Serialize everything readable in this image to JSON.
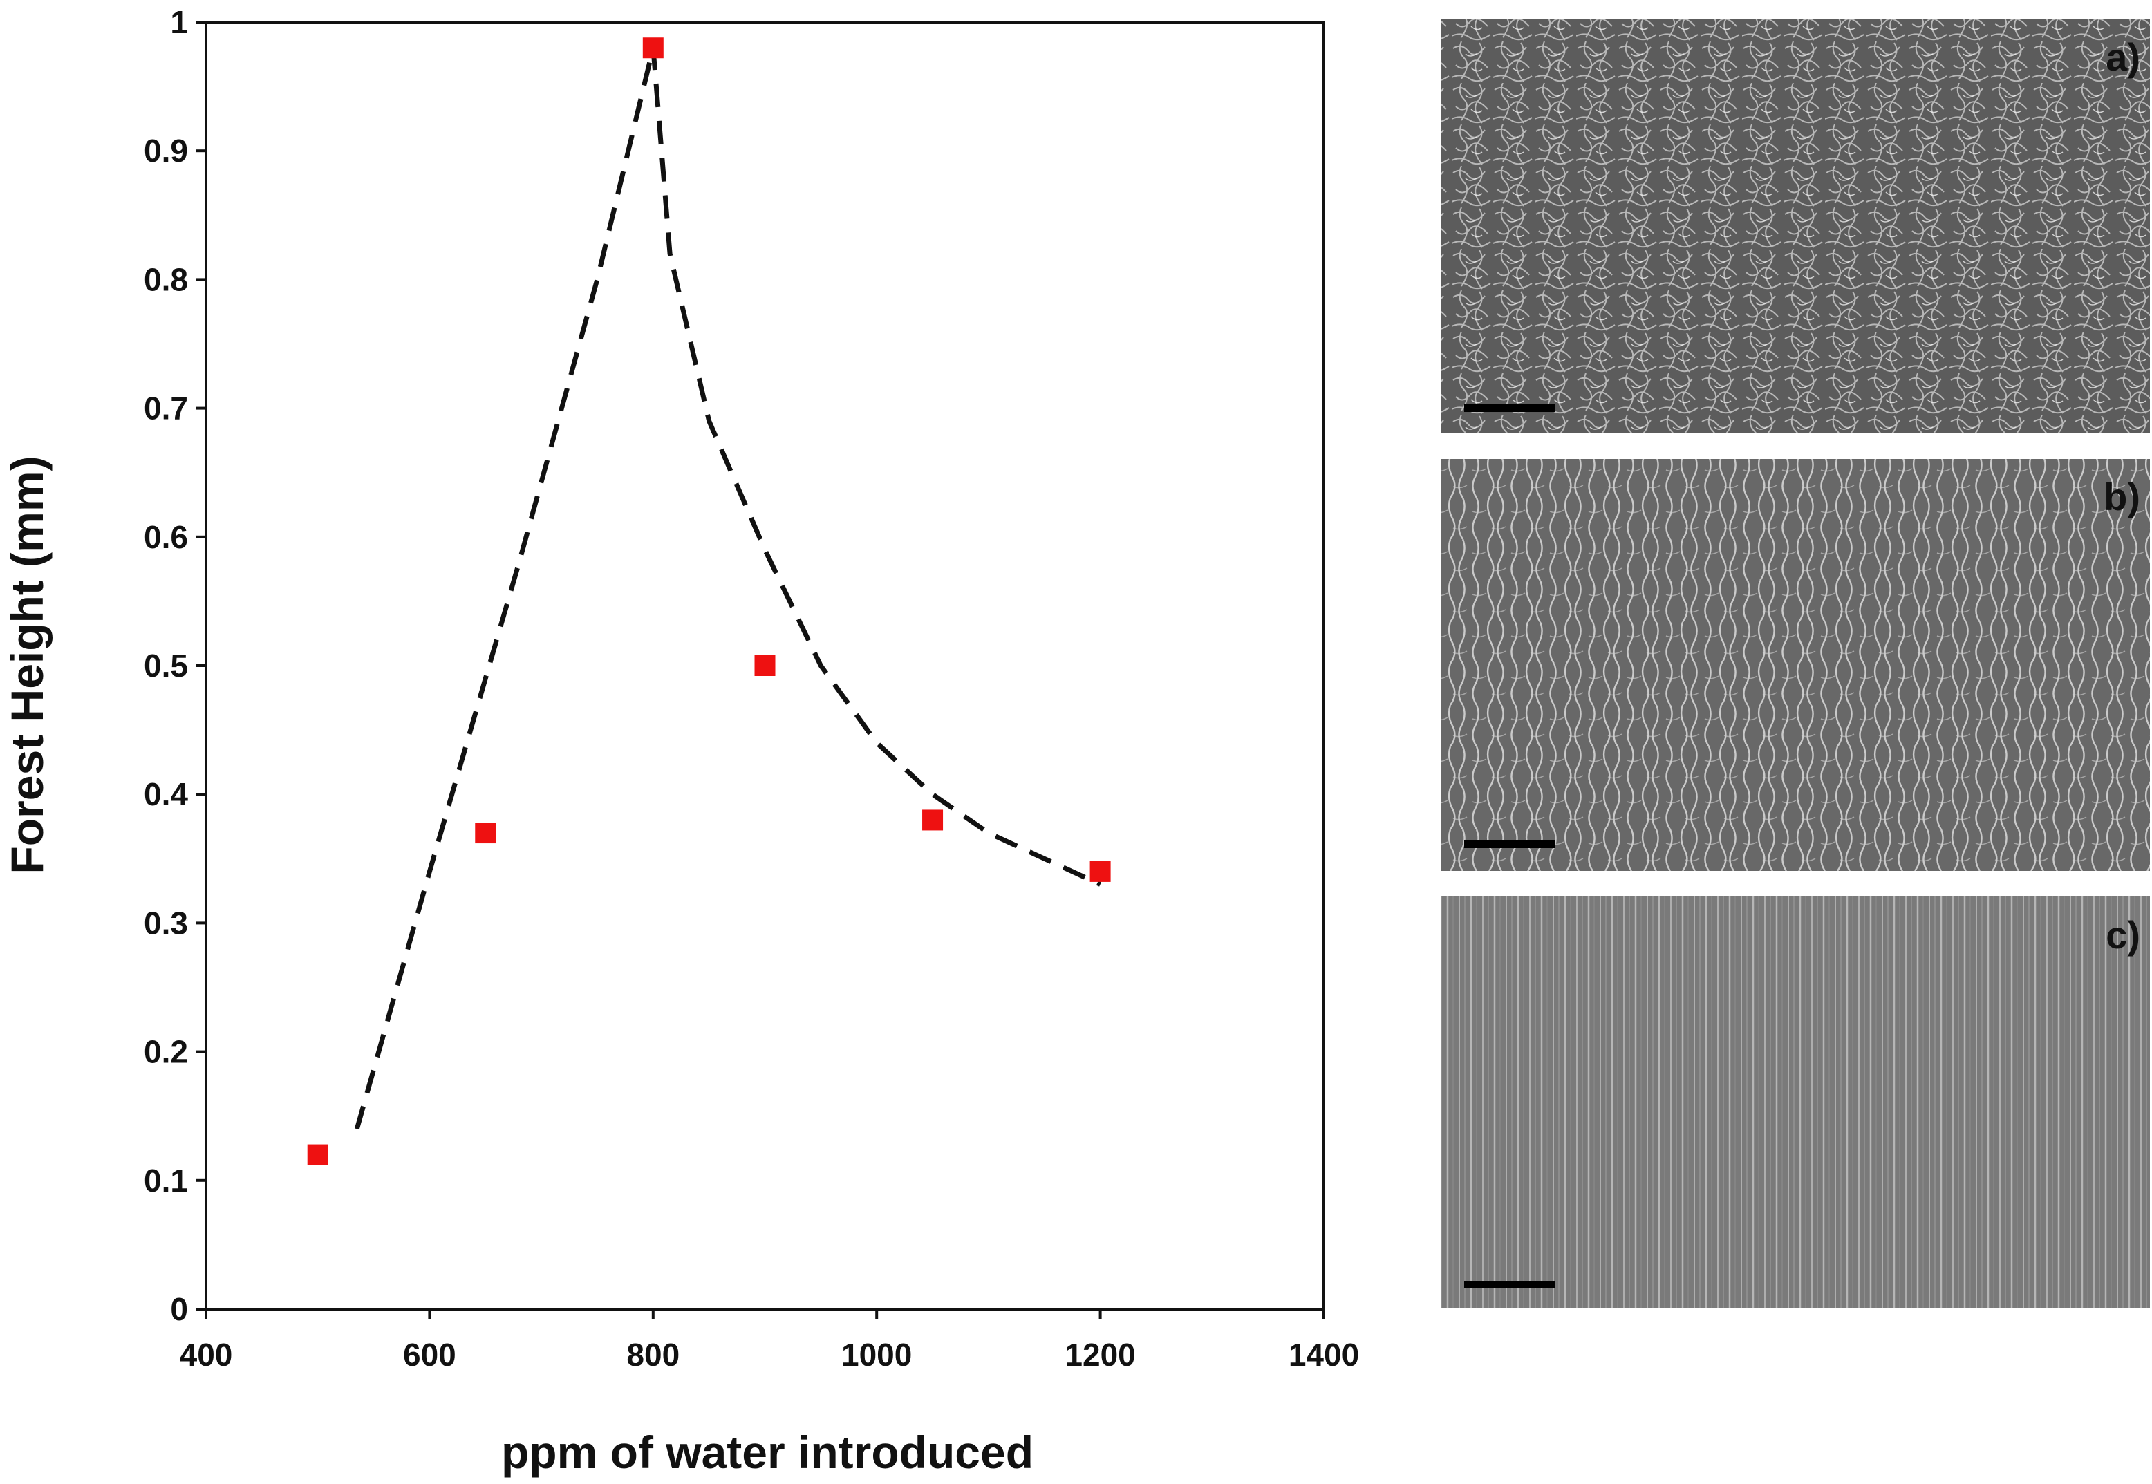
{
  "chart_data": {
    "type": "scatter",
    "xlabel": "ppm of water introduced",
    "ylabel": "Forest Height (mm)",
    "xlim": [
      400,
      1400
    ],
    "ylim": [
      0,
      1
    ],
    "x_ticks": [
      400,
      600,
      800,
      1000,
      1200,
      1400
    ],
    "y_ticks": [
      0,
      0.1,
      0.2,
      0.3,
      0.4,
      0.5,
      0.6,
      0.7,
      0.8,
      0.9,
      1
    ],
    "grid": false,
    "series": [
      {
        "marker": "square",
        "color": "#ee1111",
        "points": [
          {
            "x": 500,
            "y": 0.12
          },
          {
            "x": 650,
            "y": 0.37
          },
          {
            "x": 800,
            "y": 0.98
          },
          {
            "x": 900,
            "y": 0.5
          },
          {
            "x": 1050,
            "y": 0.38
          },
          {
            "x": 1200,
            "y": 0.34
          }
        ]
      }
    ],
    "trend_line": {
      "style": "dashed",
      "color": "#111111",
      "points": [
        {
          "x": 535,
          "y": 0.14
        },
        {
          "x": 600,
          "y": 0.34
        },
        {
          "x": 680,
          "y": 0.58
        },
        {
          "x": 750,
          "y": 0.8
        },
        {
          "x": 800,
          "y": 0.98
        },
        {
          "x": 815,
          "y": 0.82
        },
        {
          "x": 850,
          "y": 0.69
        },
        {
          "x": 900,
          "y": 0.59
        },
        {
          "x": 950,
          "y": 0.5
        },
        {
          "x": 1000,
          "y": 0.44
        },
        {
          "x": 1050,
          "y": 0.4
        },
        {
          "x": 1100,
          "y": 0.37
        },
        {
          "x": 1150,
          "y": 0.35
        },
        {
          "x": 1200,
          "y": 0.33
        }
      ]
    }
  },
  "panels": [
    {
      "label": "a)",
      "texture": "tangled",
      "bg": "#5c5c5c",
      "fiber": "#dcdcdc"
    },
    {
      "label": "b)",
      "texture": "semi-aligned",
      "bg": "#686868",
      "fiber": "#e4e4e4"
    },
    {
      "label": "c)",
      "texture": "aligned",
      "bg": "#7a7a7a",
      "fiber": "#bdbdbd"
    }
  ]
}
